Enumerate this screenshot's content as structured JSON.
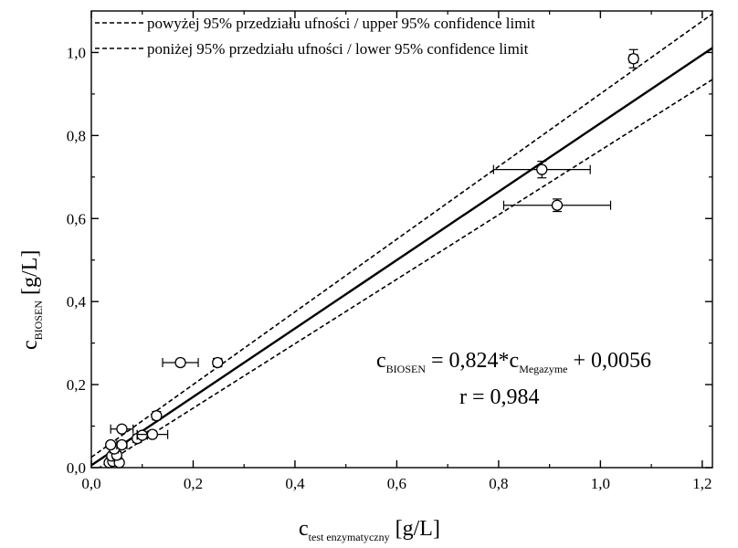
{
  "chart_data": {
    "type": "scatter",
    "x_axis": {
      "label_main": "c",
      "label_sub": "test enzymatyczny",
      "label_unit": " [g/L]",
      "range": [
        0.0,
        1.22
      ],
      "ticks": [
        0.0,
        0.2,
        0.4,
        0.6,
        0.8,
        1.0,
        1.2
      ],
      "tick_labels": [
        "0,0",
        "0,2",
        "0,4",
        "0,6",
        "0,8",
        "1,0",
        "1,2"
      ]
    },
    "y_axis": {
      "label_main": "c",
      "label_sub": "BIOSEN",
      "label_unit": " [g/L]",
      "range": [
        0.0,
        1.1
      ],
      "ticks": [
        0.0,
        0.2,
        0.4,
        0.6,
        0.8,
        1.0
      ],
      "tick_labels": [
        "0,0",
        "0,2",
        "0,4",
        "0,6",
        "0,8",
        "1,0"
      ]
    },
    "legend": {
      "placement": "top-left",
      "entries": [
        {
          "label": "powyżej 95% przedziału ufności / upper 95% confidence limit",
          "style": "dashed"
        },
        {
          "label": "poniżej 95% przedziału ufności / lower 95% confidence limit",
          "style": "dashed"
        }
      ]
    },
    "regression": {
      "slope": 0.824,
      "intercept": 0.0056
    },
    "confidence_bands": {
      "upper": [
        [
          0.0,
          0.025
        ],
        [
          1.22,
          1.093
        ]
      ],
      "lower": [
        [
          0.0,
          -0.012
        ],
        [
          1.22,
          0.935
        ]
      ]
    },
    "annotation": {
      "eq_lhs_main": "c",
      "eq_lhs_sub": "BIOSEN",
      "eq_mid": " = 0,824*c",
      "eq_rhs_sub": "Megazyme",
      "eq_tail": " + 0,0056",
      "r_text": "r = 0,984"
    },
    "points": [
      {
        "x": 0.035,
        "y": 0.012,
        "xerr": 0.006,
        "yerr": 0.006
      },
      {
        "x": 0.042,
        "y": 0.015,
        "xerr": 0.006,
        "yerr": 0.006
      },
      {
        "x": 0.055,
        "y": 0.012,
        "xerr": 0.006,
        "yerr": 0.006
      },
      {
        "x": 0.04,
        "y": 0.028,
        "xerr": 0.006,
        "yerr": 0.006
      },
      {
        "x": 0.05,
        "y": 0.03,
        "xerr": 0.008,
        "yerr": 0.006
      },
      {
        "x": 0.045,
        "y": 0.045,
        "xerr": 0.008,
        "yerr": 0.006
      },
      {
        "x": 0.038,
        "y": 0.055,
        "xerr": 0.006,
        "yerr": 0.006
      },
      {
        "x": 0.06,
        "y": 0.055,
        "xerr": 0.01,
        "yerr": 0.006
      },
      {
        "x": 0.06,
        "y": 0.093,
        "xerr": 0.022,
        "yerr": 0.006
      },
      {
        "x": 0.09,
        "y": 0.07,
        "xerr": 0.008,
        "yerr": 0.008
      },
      {
        "x": 0.1,
        "y": 0.078,
        "xerr": 0.01,
        "yerr": 0.008
      },
      {
        "x": 0.12,
        "y": 0.08,
        "xerr": 0.03,
        "yerr": 0.008
      },
      {
        "x": 0.128,
        "y": 0.125,
        "xerr": 0.006,
        "yerr": 0.01
      },
      {
        "x": 0.175,
        "y": 0.253,
        "xerr": 0.035,
        "yerr": 0.008
      },
      {
        "x": 0.248,
        "y": 0.253,
        "xerr": 0.008,
        "yerr": 0.01
      },
      {
        "x": 0.885,
        "y": 0.718,
        "xerr": 0.095,
        "yerr": 0.02
      },
      {
        "x": 0.915,
        "y": 0.632,
        "xerr": 0.105,
        "yerr": 0.015
      },
      {
        "x": 1.065,
        "y": 0.985,
        "xerr": 0.008,
        "yerr": 0.022
      }
    ]
  }
}
